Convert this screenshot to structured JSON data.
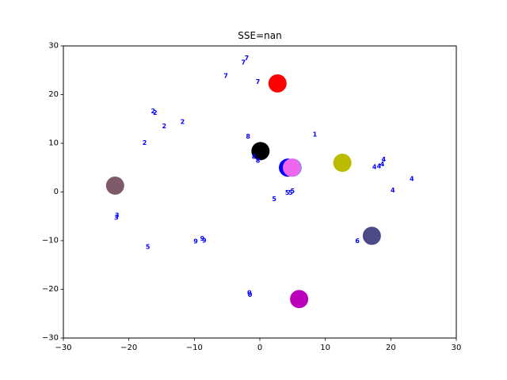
{
  "chart_data": {
    "type": "scatter",
    "title": "SSE=nan",
    "xlabel": "",
    "ylabel": "",
    "xlim": [
      -30,
      30
    ],
    "ylim": [
      -30,
      30
    ],
    "xticks": [
      -30,
      -20,
      -10,
      0,
      10,
      20,
      30
    ],
    "yticks": [
      -30,
      -20,
      -10,
      0,
      10,
      20,
      30
    ],
    "xtick_labels": [
      "−30",
      "−20",
      "−10",
      "0",
      "10",
      "20",
      "30"
    ],
    "ytick_labels": [
      "−30",
      "−20",
      "−10",
      "0",
      "10",
      "20",
      "30"
    ],
    "grid": false,
    "labeled_points": [
      {
        "label": "7",
        "x": -2.0,
        "y": 27.5
      },
      {
        "label": "7",
        "x": -2.5,
        "y": 26.6
      },
      {
        "label": "7",
        "x": -5.2,
        "y": 23.8
      },
      {
        "label": "7",
        "x": -0.3,
        "y": 22.6
      },
      {
        "label": "2",
        "x": -16.3,
        "y": 16.6
      },
      {
        "label": "2",
        "x": -16.0,
        "y": 16.3
      },
      {
        "label": "2",
        "x": -11.8,
        "y": 14.4
      },
      {
        "label": "2",
        "x": -14.6,
        "y": 13.5
      },
      {
        "label": "2",
        "x": -17.6,
        "y": 10.1
      },
      {
        "label": "1",
        "x": 8.4,
        "y": 11.8
      },
      {
        "label": "8",
        "x": -1.8,
        "y": 11.4
      },
      {
        "label": "8",
        "x": -0.9,
        "y": 7.2
      },
      {
        "label": "8",
        "x": -0.3,
        "y": 6.4
      },
      {
        "label": "4",
        "x": 18.9,
        "y": 6.7
      },
      {
        "label": "4",
        "x": 18.7,
        "y": 5.7
      },
      {
        "label": "4",
        "x": 18.2,
        "y": 5.3
      },
      {
        "label": "4",
        "x": 17.5,
        "y": 5.1
      },
      {
        "label": "4",
        "x": 23.2,
        "y": 2.7
      },
      {
        "label": "4",
        "x": 20.3,
        "y": 0.3
      },
      {
        "label": "5",
        "x": 5.0,
        "y": 0.2
      },
      {
        "label": "5",
        "x": 4.7,
        "y": -0.2
      },
      {
        "label": "5",
        "x": 4.2,
        "y": -0.2
      },
      {
        "label": "5",
        "x": 2.2,
        "y": -1.5
      },
      {
        "label": "5",
        "x": -17.1,
        "y": -11.3
      },
      {
        "label": "3",
        "x": -21.8,
        "y": -4.8
      },
      {
        "label": "3",
        "x": -21.9,
        "y": -5.3
      },
      {
        "label": "9",
        "x": -8.8,
        "y": -9.6
      },
      {
        "label": "9",
        "x": -8.5,
        "y": -10.0
      },
      {
        "label": "9",
        "x": -9.8,
        "y": -10.2
      },
      {
        "label": "6",
        "x": 14.9,
        "y": -10.1
      },
      {
        "label": "0",
        "x": -1.6,
        "y": -20.7
      },
      {
        "label": "0",
        "x": -1.5,
        "y": -21.1
      }
    ],
    "centroids": [
      {
        "x": 2.7,
        "y": 22.3,
        "color": "#ff0000"
      },
      {
        "x": 0.1,
        "y": 8.4,
        "color": "#000000"
      },
      {
        "x": 5.0,
        "y": 5.0,
        "color": "#22aaee"
      },
      {
        "x": 4.3,
        "y": 5.0,
        "color": "#0000ff"
      },
      {
        "x": 4.9,
        "y": 5.0,
        "color": "#ee66ee"
      },
      {
        "x": 12.6,
        "y": 6.0,
        "color": "#bbbb00"
      },
      {
        "x": -22.1,
        "y": 1.3,
        "color": "#7f5a6a"
      },
      {
        "x": 17.1,
        "y": -9.0,
        "color": "#4d4b86"
      },
      {
        "x": 6.0,
        "y": -22.0,
        "color": "#bb00bb"
      }
    ]
  }
}
